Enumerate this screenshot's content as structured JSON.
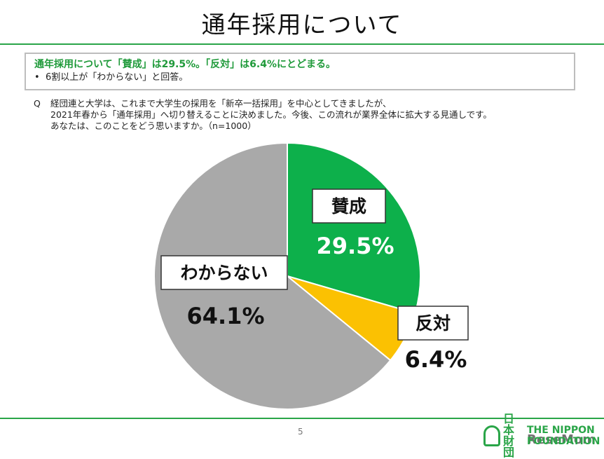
{
  "title": "通年採用について",
  "summary": {
    "headline": "通年採用について「賛成」は29.5%。「反対」は6.4%にとどまる。",
    "bullet": "6割以上が「わからない」と回答。"
  },
  "question": {
    "marker": "Q",
    "lines": [
      "経団連と大学は、これまで大学生の採用を「新卒一括採用」を中心としてきましたが、",
      "2021年春から「通年採用」へ切り替えることに決めました。今後、この流れが業界全体に拡大する見通しです。",
      "あなたは、このことをどう思いますか。（n=1000）"
    ]
  },
  "chart_data": {
    "type": "pie",
    "start": "12 o'clock",
    "direction": "clockwise",
    "slices": [
      {
        "label": "賛成",
        "value": 29.5,
        "value_label": "29.5%",
        "color": "#0db04b"
      },
      {
        "label": "反対",
        "value": 6.4,
        "value_label": "6.4%",
        "color": "#fbc102"
      },
      {
        "label": "わからない",
        "value": 64.1,
        "value_label": "64.1%",
        "color": "#a9a9a9"
      }
    ]
  },
  "page_number": "5",
  "logo": {
    "ja_line1": "日本",
    "ja_line2": "財団",
    "en_line1": "THE NIPPON",
    "en_line2": "FOUNDATION"
  },
  "watermark": "ReseMom",
  "colors": {
    "accent": "#2aa548"
  }
}
